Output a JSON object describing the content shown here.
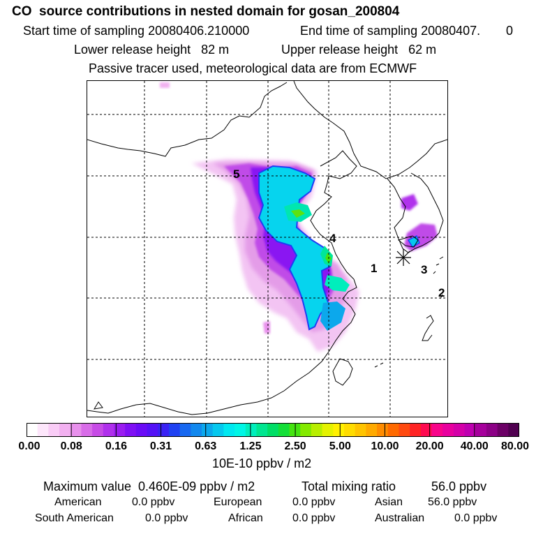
{
  "header": {
    "title": "CO  source contributions in nested domain for gosan_200804",
    "start_label": "Start time of sampling 20080406.210000",
    "end_label": "End time of sampling 20080407.",
    "end_suffix": "0",
    "lower_height": "Lower release height   82 m",
    "upper_height": "Upper release height   62 m",
    "tracer_note": "Passive tracer used, meteorological data are from ECMWF"
  },
  "map": {
    "markers": [
      "5",
      "4",
      "1",
      "3",
      "2"
    ],
    "receptor_symbol": "gosan-star-icon"
  },
  "colorbar": {
    "tick_labels": [
      "0.00",
      "0.08",
      "0.16",
      "0.31",
      "0.63",
      "1.25",
      "2.50",
      "5.00",
      "10.00",
      "20.00",
      "40.00",
      "80.00"
    ],
    "unit": "10E-10 ppbv / m2",
    "colors": [
      "#ffffff",
      "#fde6fb",
      "#f9ccf6",
      "#f2b0f0",
      "#e890ec",
      "#d86ce8",
      "#c74be6",
      "#b030ec",
      "#9a1df0",
      "#7f10f4",
      "#6a0cf6",
      "#5412f6",
      "#3a22f4",
      "#2042f2",
      "#1868f0",
      "#1288ee",
      "#0ca8ec",
      "#06c8ee",
      "#00e8f0",
      "#00f6e6",
      "#00eebc",
      "#00e690",
      "#00de66",
      "#14de38",
      "#44e410",
      "#84ea00",
      "#b8ee00",
      "#e4f200",
      "#fff000",
      "#ffdc00",
      "#ffc400",
      "#ffaa00",
      "#ff8c00",
      "#ff6a00",
      "#ff4a10",
      "#ff2424",
      "#ff0a50",
      "#f8048a",
      "#e8009e",
      "#d400a8",
      "#be00b0",
      "#a6009c",
      "#8c0086",
      "#6c0066",
      "#500050"
    ]
  },
  "stats": {
    "max_label": "Maximum value  0.460E-09 ppbv / m2",
    "total_label": "Total mixing ratio",
    "total_value": "56.0 ppbv",
    "sources": [
      {
        "name": "American",
        "value": "0.0 ppbv"
      },
      {
        "name": "European",
        "value": "0.0 ppbv"
      },
      {
        "name": "Asian",
        "value": "56.0 ppbv"
      },
      {
        "name": "South American",
        "value": "0.0 ppbv"
      },
      {
        "name": "African",
        "value": "0.0 ppbv"
      },
      {
        "name": "Australian",
        "value": "0.0 ppbv"
      }
    ]
  }
}
